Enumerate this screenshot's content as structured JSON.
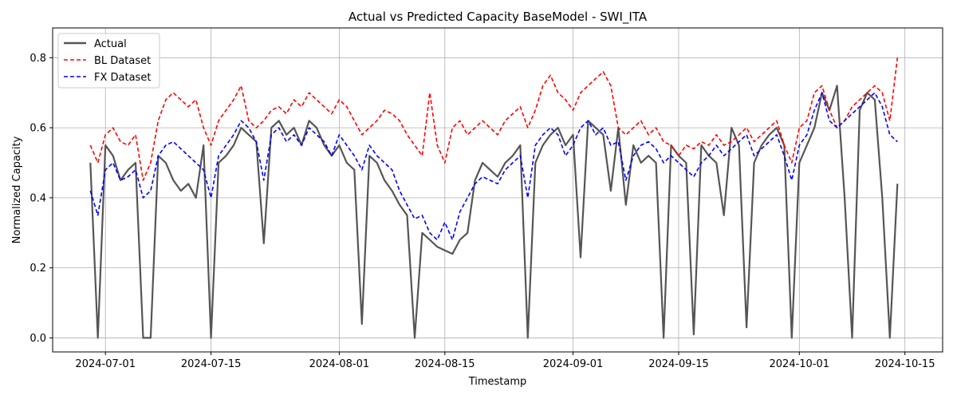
{
  "chart_data": {
    "type": "line",
    "title": "Actual vs Predicted Capacity BaseModel - SWI_ITA",
    "xlabel": "Timestamp",
    "ylabel": "Normalized Capacity",
    "xlim": [
      "2024-06-24",
      "2024-10-20"
    ],
    "ylim": [
      -0.04,
      0.885
    ],
    "x_ticks": [
      "2024-07-01",
      "2024-07-15",
      "2024-08-01",
      "2024-08-15",
      "2024-09-01",
      "2024-09-15",
      "2024-10-01",
      "2024-10-15"
    ],
    "y_ticks": [
      "0.0",
      "0.2",
      "0.4",
      "0.6",
      "0.8"
    ],
    "grid": true,
    "legend_position": "top-left",
    "x": [
      "2024-06-29",
      "2024-06-30",
      "2024-07-01",
      "2024-07-02",
      "2024-07-03",
      "2024-07-04",
      "2024-07-05",
      "2024-07-06",
      "2024-07-07",
      "2024-07-08",
      "2024-07-09",
      "2024-07-10",
      "2024-07-11",
      "2024-07-12",
      "2024-07-13",
      "2024-07-14",
      "2024-07-15",
      "2024-07-16",
      "2024-07-17",
      "2024-07-18",
      "2024-07-19",
      "2024-07-20",
      "2024-07-21",
      "2024-07-22",
      "2024-07-23",
      "2024-07-24",
      "2024-07-25",
      "2024-07-26",
      "2024-07-27",
      "2024-07-28",
      "2024-07-29",
      "2024-07-30",
      "2024-07-31",
      "2024-08-01",
      "2024-08-02",
      "2024-08-03",
      "2024-08-04",
      "2024-08-05",
      "2024-08-06",
      "2024-08-07",
      "2024-08-08",
      "2024-08-09",
      "2024-08-10",
      "2024-08-11",
      "2024-08-12",
      "2024-08-13",
      "2024-08-14",
      "2024-08-15",
      "2024-08-16",
      "2024-08-17",
      "2024-08-18",
      "2024-08-19",
      "2024-08-20",
      "2024-08-21",
      "2024-08-22",
      "2024-08-23",
      "2024-08-24",
      "2024-08-25",
      "2024-08-26",
      "2024-08-27",
      "2024-08-28",
      "2024-08-29",
      "2024-08-30",
      "2024-08-31",
      "2024-09-01",
      "2024-09-02",
      "2024-09-03",
      "2024-09-04",
      "2024-09-05",
      "2024-09-06",
      "2024-09-07",
      "2024-09-08",
      "2024-09-09",
      "2024-09-10",
      "2024-09-11",
      "2024-09-12",
      "2024-09-13",
      "2024-09-14",
      "2024-09-15",
      "2024-09-16",
      "2024-09-17",
      "2024-09-18",
      "2024-09-19",
      "2024-09-20",
      "2024-09-21",
      "2024-09-22",
      "2024-09-23",
      "2024-09-24",
      "2024-09-25",
      "2024-09-26",
      "2024-09-27",
      "2024-09-28",
      "2024-09-29",
      "2024-09-30",
      "2024-10-01",
      "2024-10-02",
      "2024-10-03",
      "2024-10-04",
      "2024-10-05",
      "2024-10-06",
      "2024-10-07",
      "2024-10-08",
      "2024-10-09",
      "2024-10-10",
      "2024-10-11",
      "2024-10-12",
      "2024-10-13",
      "2024-10-14"
    ],
    "series": [
      {
        "name": "Actual",
        "color": "#555555",
        "style": "solid",
        "values": [
          0.5,
          0.0,
          0.55,
          0.52,
          0.45,
          0.48,
          0.5,
          0.0,
          0.0,
          0.52,
          0.5,
          0.45,
          0.42,
          0.44,
          0.4,
          0.55,
          0.0,
          0.5,
          0.52,
          0.55,
          0.6,
          0.58,
          0.56,
          0.27,
          0.6,
          0.62,
          0.58,
          0.6,
          0.55,
          0.62,
          0.6,
          0.55,
          0.52,
          0.55,
          0.5,
          0.48,
          0.04,
          0.52,
          0.5,
          0.45,
          0.42,
          0.38,
          0.35,
          0.0,
          0.3,
          0.28,
          0.26,
          0.25,
          0.24,
          0.28,
          0.3,
          0.45,
          0.5,
          0.48,
          0.46,
          0.5,
          0.52,
          0.55,
          0.0,
          0.5,
          0.55,
          0.58,
          0.6,
          0.55,
          0.58,
          0.23,
          0.62,
          0.6,
          0.58,
          0.42,
          0.6,
          0.38,
          0.55,
          0.5,
          0.52,
          0.5,
          0.0,
          0.55,
          0.52,
          0.5,
          0.01,
          0.55,
          0.52,
          0.5,
          0.35,
          0.6,
          0.55,
          0.03,
          0.5,
          0.55,
          0.58,
          0.6,
          0.55,
          0.0,
          0.5,
          0.55,
          0.6,
          0.7,
          0.65,
          0.72,
          0.4,
          0.0,
          0.65,
          0.7,
          0.68,
          0.4,
          0.0,
          0.44
        ]
      },
      {
        "name": "BL Dataset",
        "color": "#ff0000",
        "style": "dashed",
        "values": [
          0.55,
          0.5,
          0.58,
          0.6,
          0.56,
          0.55,
          0.58,
          0.45,
          0.5,
          0.62,
          0.68,
          0.7,
          0.68,
          0.66,
          0.68,
          0.6,
          0.55,
          0.62,
          0.65,
          0.68,
          0.72,
          0.62,
          0.6,
          0.62,
          0.65,
          0.66,
          0.64,
          0.68,
          0.66,
          0.7,
          0.68,
          0.66,
          0.64,
          0.68,
          0.66,
          0.62,
          0.58,
          0.6,
          0.62,
          0.65,
          0.64,
          0.62,
          0.58,
          0.55,
          0.52,
          0.7,
          0.55,
          0.5,
          0.6,
          0.62,
          0.58,
          0.6,
          0.62,
          0.6,
          0.58,
          0.62,
          0.64,
          0.66,
          0.6,
          0.65,
          0.72,
          0.75,
          0.7,
          0.68,
          0.65,
          0.7,
          0.72,
          0.74,
          0.76,
          0.72,
          0.6,
          0.58,
          0.6,
          0.62,
          0.58,
          0.6,
          0.56,
          0.55,
          0.52,
          0.55,
          0.54,
          0.56,
          0.55,
          0.58,
          0.55,
          0.56,
          0.58,
          0.6,
          0.56,
          0.58,
          0.6,
          0.62,
          0.55,
          0.5,
          0.6,
          0.62,
          0.7,
          0.72,
          0.65,
          0.6,
          0.62,
          0.66,
          0.68,
          0.7,
          0.72,
          0.7,
          0.62,
          0.8
        ]
      },
      {
        "name": "FX Dataset",
        "color": "#0000ff",
        "style": "dashed",
        "values": [
          0.42,
          0.35,
          0.48,
          0.5,
          0.45,
          0.46,
          0.48,
          0.4,
          0.42,
          0.52,
          0.55,
          0.56,
          0.54,
          0.52,
          0.5,
          0.48,
          0.4,
          0.52,
          0.55,
          0.58,
          0.62,
          0.6,
          0.56,
          0.45,
          0.58,
          0.6,
          0.56,
          0.58,
          0.55,
          0.6,
          0.58,
          0.56,
          0.52,
          0.58,
          0.55,
          0.52,
          0.48,
          0.55,
          0.52,
          0.5,
          0.48,
          0.42,
          0.38,
          0.34,
          0.35,
          0.3,
          0.28,
          0.33,
          0.28,
          0.36,
          0.4,
          0.44,
          0.46,
          0.45,
          0.44,
          0.48,
          0.5,
          0.52,
          0.4,
          0.55,
          0.58,
          0.6,
          0.58,
          0.52,
          0.55,
          0.6,
          0.62,
          0.58,
          0.6,
          0.55,
          0.56,
          0.45,
          0.52,
          0.55,
          0.56,
          0.54,
          0.5,
          0.52,
          0.5,
          0.48,
          0.46,
          0.5,
          0.52,
          0.55,
          0.52,
          0.54,
          0.56,
          0.58,
          0.52,
          0.54,
          0.56,
          0.58,
          0.52,
          0.45,
          0.55,
          0.58,
          0.65,
          0.7,
          0.62,
          0.6,
          0.62,
          0.64,
          0.66,
          0.68,
          0.7,
          0.66,
          0.58,
          0.56
        ]
      }
    ]
  }
}
